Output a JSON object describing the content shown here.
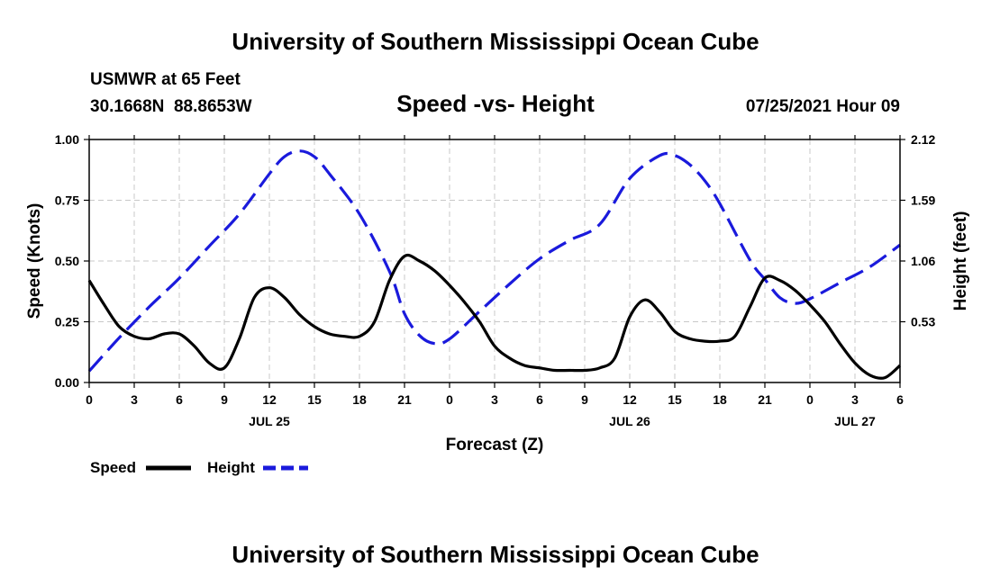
{
  "header": {
    "top_title": "University of Southern Mississippi Ocean Cube",
    "bottom_title": "University of Southern Mississippi Ocean Cube",
    "station": "USMWR at 65 Feet",
    "coords": "30.1668N  88.8653W",
    "datetime": "07/25/2021 Hour 09"
  },
  "legend": {
    "speed_label": "Speed",
    "height_label": "Height"
  },
  "colors": {
    "speed": "#000000",
    "height": "#1a1adc",
    "grid": "#c8c8c8"
  },
  "chart_data": {
    "type": "line",
    "title": "Speed -vs- Height",
    "xlabel": "Forecast (Z)",
    "ylabel": "Speed (Knots)",
    "y2label": "Height (feet)",
    "x_range": [
      0,
      54
    ],
    "ylim": [
      0,
      1.0
    ],
    "y2lim": [
      0,
      2.12
    ],
    "x_ticks": [
      {
        "x": 0,
        "label": "0"
      },
      {
        "x": 3,
        "label": "3"
      },
      {
        "x": 6,
        "label": "6"
      },
      {
        "x": 9,
        "label": "9"
      },
      {
        "x": 12,
        "label": "12"
      },
      {
        "x": 15,
        "label": "15"
      },
      {
        "x": 18,
        "label": "18"
      },
      {
        "x": 21,
        "label": "21"
      },
      {
        "x": 24,
        "label": "0"
      },
      {
        "x": 27,
        "label": "3"
      },
      {
        "x": 30,
        "label": "6"
      },
      {
        "x": 33,
        "label": "9"
      },
      {
        "x": 36,
        "label": "12"
      },
      {
        "x": 39,
        "label": "15"
      },
      {
        "x": 42,
        "label": "18"
      },
      {
        "x": 45,
        "label": "21"
      },
      {
        "x": 48,
        "label": "0"
      },
      {
        "x": 51,
        "label": "3"
      },
      {
        "x": 54,
        "label": "6"
      }
    ],
    "date_labels": [
      {
        "x": 12,
        "label": "JUL 25"
      },
      {
        "x": 36,
        "label": "JUL 26"
      },
      {
        "x": 51,
        "label": "JUL 27"
      }
    ],
    "y_ticks": [
      {
        "v": 0.0,
        "label": "0.00"
      },
      {
        "v": 0.25,
        "label": "0.25"
      },
      {
        "v": 0.5,
        "label": "0.50"
      },
      {
        "v": 0.75,
        "label": "0.75"
      },
      {
        "v": 1.0,
        "label": "1.00"
      }
    ],
    "y2_ticks": [
      {
        "v": 0.53,
        "label": "0.53"
      },
      {
        "v": 1.06,
        "label": "1.06"
      },
      {
        "v": 1.59,
        "label": "1.59"
      },
      {
        "v": 2.12,
        "label": "2.12"
      }
    ],
    "series": [
      {
        "name": "Speed",
        "axis": "left",
        "style": "solid",
        "x": [
          0,
          1,
          2,
          3,
          4,
          5,
          6,
          7,
          8,
          9,
          10,
          11,
          12,
          13,
          14,
          15,
          16,
          17,
          18,
          19,
          20,
          21,
          22,
          23,
          24,
          25,
          26,
          27,
          28,
          29,
          30,
          31,
          32,
          33,
          34,
          35,
          36,
          37,
          38,
          39,
          40,
          41,
          42,
          43,
          44,
          45,
          46,
          47,
          48,
          49,
          50,
          51,
          52,
          53,
          54
        ],
        "values": [
          0.42,
          0.32,
          0.23,
          0.19,
          0.18,
          0.2,
          0.2,
          0.15,
          0.08,
          0.06,
          0.18,
          0.35,
          0.39,
          0.35,
          0.28,
          0.23,
          0.2,
          0.19,
          0.19,
          0.25,
          0.42,
          0.52,
          0.5,
          0.46,
          0.4,
          0.33,
          0.25,
          0.15,
          0.1,
          0.07,
          0.06,
          0.05,
          0.05,
          0.05,
          0.06,
          0.1,
          0.27,
          0.34,
          0.29,
          0.21,
          0.18,
          0.17,
          0.17,
          0.19,
          0.31,
          0.43,
          0.42,
          0.38,
          0.32,
          0.25,
          0.16,
          0.08,
          0.03,
          0.02,
          0.07
        ]
      },
      {
        "name": "Height",
        "axis": "right",
        "style": "dashed",
        "x": [
          0,
          2,
          4,
          6,
          8,
          10,
          12,
          13,
          14,
          15,
          16,
          18,
          20,
          21,
          22,
          23,
          24,
          26,
          28,
          30,
          32,
          34,
          36,
          38,
          39,
          40,
          41,
          42,
          44,
          45,
          46,
          47,
          48,
          50,
          52,
          54
        ],
        "values": [
          0.1,
          0.39,
          0.66,
          0.91,
          1.19,
          1.47,
          1.82,
          1.97,
          2.02,
          1.97,
          1.82,
          1.47,
          0.97,
          0.6,
          0.41,
          0.34,
          0.38,
          0.62,
          0.86,
          1.08,
          1.24,
          1.38,
          1.78,
          1.98,
          1.98,
          1.9,
          1.76,
          1.56,
          1.07,
          0.9,
          0.74,
          0.69,
          0.73,
          0.87,
          1.01,
          1.2
        ]
      }
    ]
  }
}
